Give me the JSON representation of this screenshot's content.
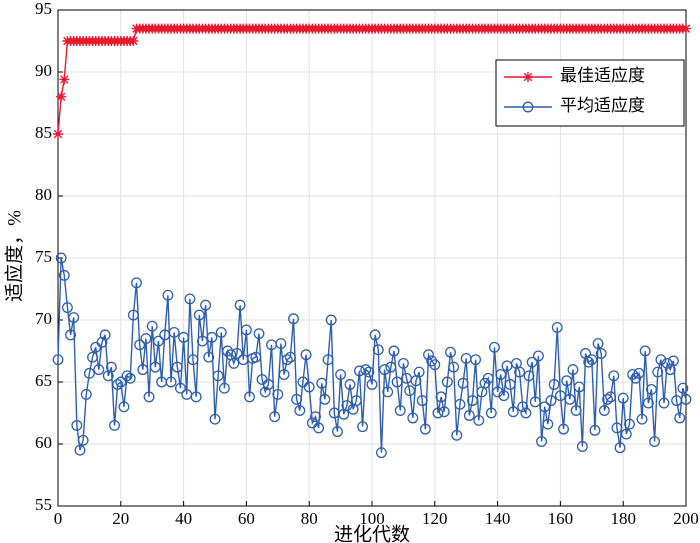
{
  "chart_data": {
    "type": "line",
    "x_label": "进化代数",
    "y_label": "适应度，%",
    "x": [
      0,
      1,
      2,
      3,
      4,
      5,
      6,
      7,
      8,
      9,
      10,
      11,
      12,
      13,
      14,
      15,
      16,
      17,
      18,
      19,
      20,
      21,
      22,
      23,
      24,
      25,
      26,
      27,
      28,
      29,
      30,
      31,
      32,
      33,
      34,
      35,
      36,
      37,
      38,
      39,
      40,
      41,
      42,
      43,
      44,
      45,
      46,
      47,
      48,
      49,
      50,
      51,
      52,
      53,
      54,
      55,
      56,
      57,
      58,
      59,
      60,
      61,
      62,
      63,
      64,
      65,
      66,
      67,
      68,
      69,
      70,
      71,
      72,
      73,
      74,
      75,
      76,
      77,
      78,
      79,
      80,
      81,
      82,
      83,
      84,
      85,
      86,
      87,
      88,
      89,
      90,
      91,
      92,
      93,
      94,
      95,
      96,
      97,
      98,
      99,
      100,
      101,
      102,
      103,
      104,
      105,
      106,
      107,
      108,
      109,
      110,
      111,
      112,
      113,
      114,
      115,
      116,
      117,
      118,
      119,
      120,
      121,
      122,
      123,
      124,
      125,
      126,
      127,
      128,
      129,
      130,
      131,
      132,
      133,
      134,
      135,
      136,
      137,
      138,
      139,
      140,
      141,
      142,
      143,
      144,
      145,
      146,
      147,
      148,
      149,
      150,
      151,
      152,
      153,
      154,
      155,
      156,
      157,
      158,
      159,
      160,
      161,
      162,
      163,
      164,
      165,
      166,
      167,
      168,
      169,
      170,
      171,
      172,
      173,
      174,
      175,
      176,
      177,
      178,
      179,
      180,
      181,
      182,
      183,
      184,
      185,
      186,
      187,
      188,
      189,
      190,
      191,
      192,
      193,
      194,
      195,
      196,
      197,
      198,
      199,
      200
    ],
    "series": [
      {
        "name": "最佳适应度",
        "color": "#e8192c",
        "marker": "star",
        "values": [
          85,
          88,
          89.4,
          92.5,
          92.5,
          92.5,
          92.5,
          92.5,
          92.5,
          92.5,
          92.5,
          92.5,
          92.5,
          92.5,
          92.5,
          92.5,
          92.5,
          92.5,
          92.5,
          92.5,
          92.5,
          92.5,
          92.5,
          92.5,
          92.5,
          93.5,
          93.5,
          93.5,
          93.5,
          93.5,
          93.5,
          93.5,
          93.5,
          93.5,
          93.5,
          93.5,
          93.5,
          93.5,
          93.5,
          93.5,
          93.5,
          93.5,
          93.5,
          93.5,
          93.5,
          93.5,
          93.5,
          93.5,
          93.5,
          93.5,
          93.5,
          93.5,
          93.5,
          93.5,
          93.5,
          93.5,
          93.5,
          93.5,
          93.5,
          93.5,
          93.5,
          93.5,
          93.5,
          93.5,
          93.5,
          93.5,
          93.5,
          93.5,
          93.5,
          93.5,
          93.5,
          93.5,
          93.5,
          93.5,
          93.5,
          93.5,
          93.5,
          93.5,
          93.5,
          93.5,
          93.5,
          93.5,
          93.5,
          93.5,
          93.5,
          93.5,
          93.5,
          93.5,
          93.5,
          93.5,
          93.5,
          93.5,
          93.5,
          93.5,
          93.5,
          93.5,
          93.5,
          93.5,
          93.5,
          93.5,
          93.5,
          93.5,
          93.5,
          93.5,
          93.5,
          93.5,
          93.5,
          93.5,
          93.5,
          93.5,
          93.5,
          93.5,
          93.5,
          93.5,
          93.5,
          93.5,
          93.5,
          93.5,
          93.5,
          93.5,
          93.5,
          93.5,
          93.5,
          93.5,
          93.5,
          93.5,
          93.5,
          93.5,
          93.5,
          93.5,
          93.5,
          93.5,
          93.5,
          93.5,
          93.5,
          93.5,
          93.5,
          93.5,
          93.5,
          93.5,
          93.5,
          93.5,
          93.5,
          93.5,
          93.5,
          93.5,
          93.5,
          93.5,
          93.5,
          93.5,
          93.5,
          93.5,
          93.5,
          93.5,
          93.5,
          93.5,
          93.5,
          93.5,
          93.5,
          93.5,
          93.5,
          93.5,
          93.5,
          93.5,
          93.5,
          93.5,
          93.5,
          93.5,
          93.5,
          93.5,
          93.5,
          93.5,
          93.5,
          93.5,
          93.5,
          93.5,
          93.5,
          93.5,
          93.5,
          93.5,
          93.5,
          93.5,
          93.5,
          93.5,
          93.5,
          93.5,
          93.5,
          93.5,
          93.5,
          93.5,
          93.5,
          93.5,
          93.5,
          93.5,
          93.5,
          93.5,
          93.5,
          93.5,
          93.5,
          93.5,
          93.5
        ]
      },
      {
        "name": "平均适应度",
        "color": "#2e5fad",
        "marker": "circle",
        "values": [
          66.8,
          75,
          73.6,
          71,
          68.8,
          70.2,
          61.5,
          59.5,
          60.3,
          64,
          65.7,
          67,
          67.8,
          66,
          68.2,
          68.8,
          65.5,
          66.2,
          61.5,
          64.8,
          65,
          63,
          65.5,
          65.3,
          70.4,
          73,
          68,
          66,
          68.5,
          63.8,
          69.5,
          66.2,
          68.3,
          65,
          68.8,
          72,
          65,
          69,
          66.2,
          64.5,
          68.6,
          64,
          71.7,
          66.8,
          63.8,
          70.4,
          68.3,
          71.2,
          67,
          68.6,
          62,
          65.5,
          69,
          64.5,
          67.5,
          67.2,
          66.5,
          67.3,
          71.2,
          66.8,
          69.2,
          63.8,
          66.9,
          67,
          68.9,
          65.2,
          64.2,
          64.8,
          68,
          62.2,
          64,
          68.1,
          65.6,
          66.8,
          67,
          70.1,
          63.6,
          62.7,
          65,
          67.2,
          64.6,
          61.7,
          62.2,
          61.3,
          64.9,
          63.6,
          66.8,
          70,
          62.5,
          61,
          65.6,
          62.4,
          63.1,
          64.8,
          62.8,
          63.5,
          65.9,
          61.4,
          66,
          65.8,
          64.8,
          68.8,
          67.6,
          59.3,
          66,
          64.2,
          66.2,
          67.5,
          65,
          62.7,
          66.5,
          65.3,
          64.3,
          62.1,
          65.1,
          65.8,
          63.5,
          61.2,
          67.2,
          66.7,
          66.4,
          62.5,
          63.8,
          62.6,
          65,
          67.4,
          66.2,
          60.7,
          63.2,
          64.9,
          66.9,
          62.3,
          63.5,
          66.8,
          61.9,
          64.2,
          64.9,
          65.3,
          62.5,
          67.8,
          64.2,
          65.6,
          63.9,
          66.3,
          64.8,
          62.6,
          66.5,
          65.8,
          63,
          62.5,
          65.5,
          66.6,
          63.4,
          67.1,
          60.2,
          63,
          61.6,
          63.5,
          64.8,
          69.4,
          63.9,
          61.2,
          65.1,
          63.6,
          66,
          62.7,
          64.6,
          59.8,
          67.3,
          66.6,
          66.8,
          61.1,
          68.1,
          67.3,
          62.7,
          63.6,
          63.8,
          65.5,
          61.3,
          59.7,
          63.7,
          60.8,
          61.6,
          65.6,
          65.3,
          65.7,
          62,
          67.5,
          63.3,
          64.4,
          60.2,
          65.8,
          66.8,
          63.3,
          66.5,
          66,
          66.7,
          63.5,
          62.1,
          64.5,
          63.6
        ]
      }
    ],
    "xlim": [
      0,
      200
    ],
    "xticks": [
      0,
      20,
      40,
      60,
      80,
      100,
      120,
      140,
      160,
      180,
      200
    ],
    "ylim": [
      55,
      95
    ],
    "yticks": [
      55,
      60,
      65,
      70,
      75,
      80,
      85,
      90,
      95
    ],
    "grid": true,
    "legend": "upper right"
  }
}
